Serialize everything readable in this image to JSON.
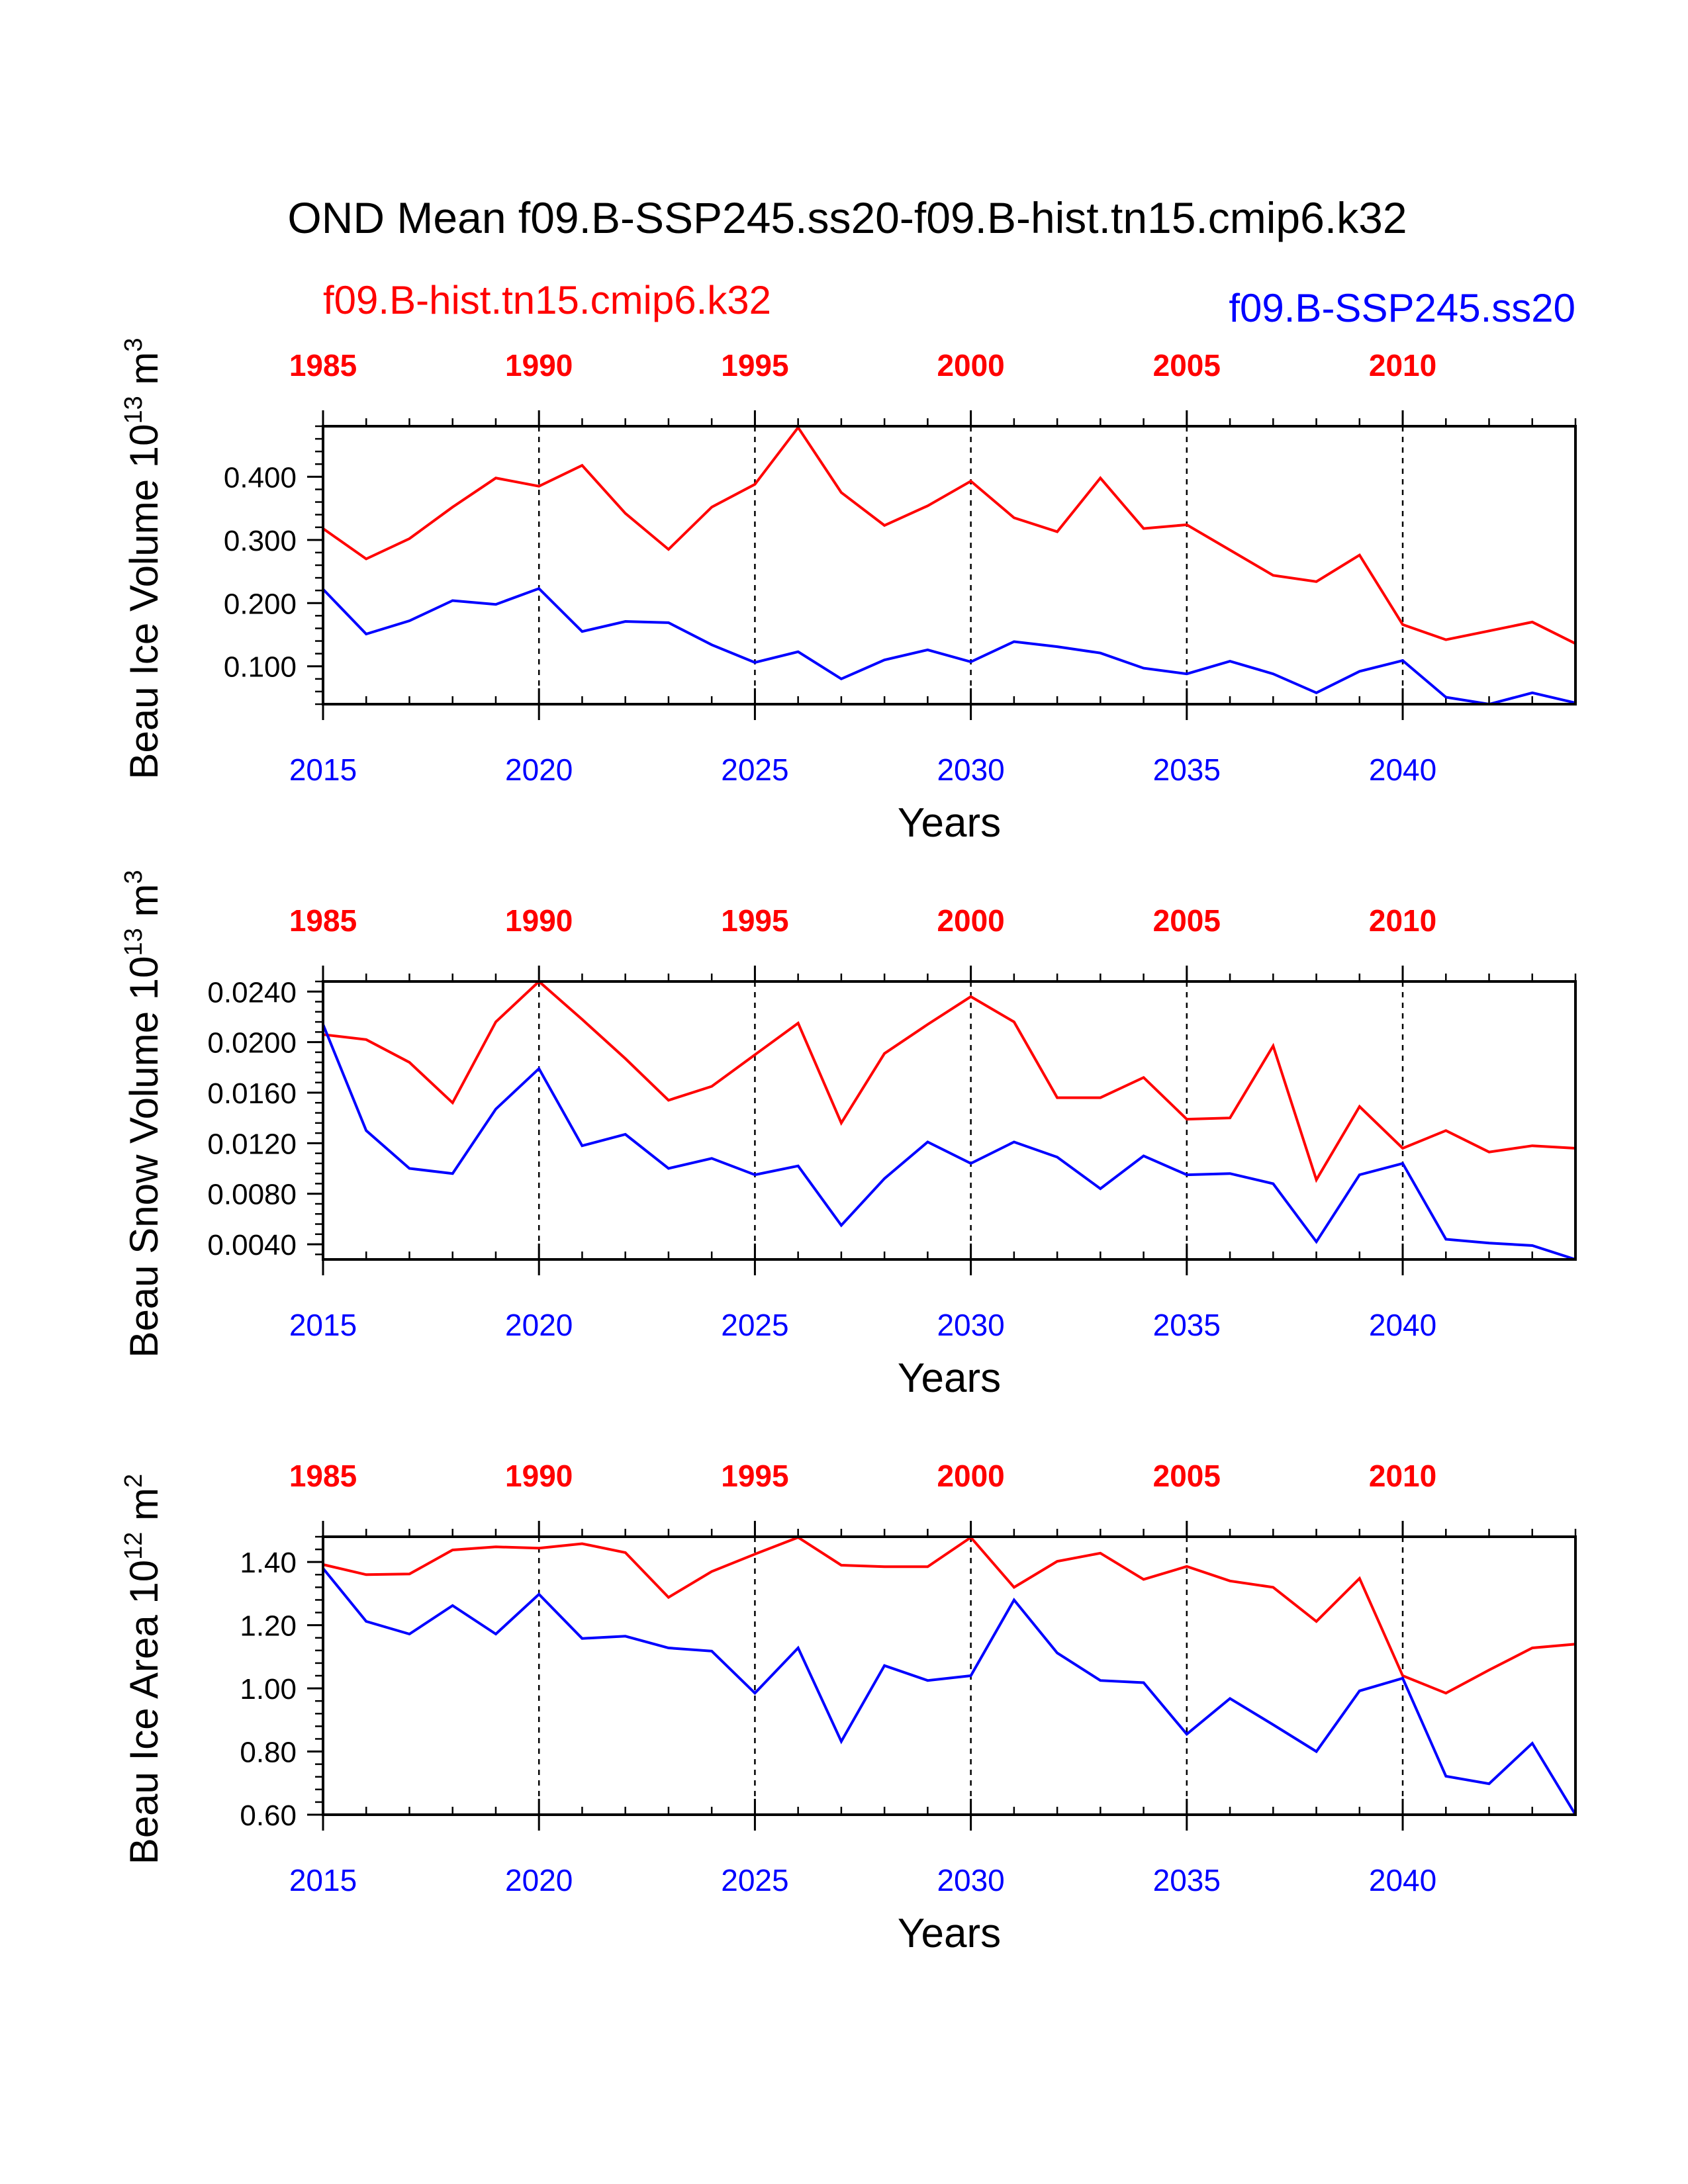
{
  "title": "OND Mean f09.B-SSP245.ss20-f09.B-hist.tn15.cmip6.k32",
  "legend": {
    "left": "f09.B-hist.tn15.cmip6.k32",
    "right": "f09.B-SSP245.ss20"
  },
  "colors": {
    "red": "#ff0000",
    "blue": "#0000ff",
    "axis": "#000000"
  },
  "chart_data": [
    {
      "type": "line",
      "ylabel": "Beau Ice Volume",
      "yunit_base": "10",
      "yunit_exp": "13",
      "yunit_unit": "m",
      "yunit_pow": "3",
      "xlabel": "Years",
      "ylim": [
        0.04,
        0.48
      ],
      "yticks": [
        0.1,
        0.2,
        0.3,
        0.4
      ],
      "ytick_labels": [
        "0.100",
        "0.200",
        "0.300",
        "0.400"
      ],
      "bottom_axis": {
        "xlim": [
          2015,
          2044
        ],
        "ticks": [
          2015,
          2020,
          2025,
          2030,
          2035,
          2040
        ],
        "tick_labels": [
          "2015",
          "2020",
          "2025",
          "2030",
          "2035",
          "2040"
        ]
      },
      "top_axis": {
        "xlim": [
          1985,
          2014
        ],
        "ticks": [
          1985,
          1990,
          1995,
          2000,
          2005,
          2010
        ],
        "tick_labels": [
          "1985",
          "1990",
          "1995",
          "2000",
          "2005",
          "2010"
        ]
      },
      "series": [
        {
          "color": "red",
          "x": [
            1985,
            1986,
            1987,
            1988,
            1989,
            1990,
            1991,
            1992,
            1993,
            1994,
            1995,
            1996,
            1997,
            1998,
            1999,
            2000,
            2001,
            2002,
            2003,
            2004,
            2005,
            2006,
            2007,
            2008,
            2009,
            2010,
            2011,
            2012,
            2013,
            2014
          ],
          "values": [
            0.318,
            0.27,
            0.302,
            0.352,
            0.398,
            0.385,
            0.418,
            0.342,
            0.285,
            0.352,
            0.388,
            0.478,
            0.375,
            0.323,
            0.354,
            0.393,
            0.335,
            0.313,
            0.398,
            0.318,
            0.324,
            0.284,
            0.244,
            0.234,
            0.276,
            0.166,
            0.142,
            0.156,
            0.17,
            0.136
          ]
        },
        {
          "color": "blue",
          "x": [
            2015,
            2016,
            2017,
            2018,
            2019,
            2020,
            2021,
            2022,
            2023,
            2024,
            2025,
            2026,
            2027,
            2028,
            2029,
            2030,
            2031,
            2032,
            2033,
            2034,
            2035,
            2036,
            2037,
            2038,
            2039,
            2040,
            2041,
            2042,
            2043,
            2044
          ],
          "values": [
            0.222,
            0.151,
            0.172,
            0.204,
            0.198,
            0.223,
            0.155,
            0.171,
            0.169,
            0.134,
            0.106,
            0.123,
            0.08,
            0.11,
            0.126,
            0.107,
            0.139,
            0.131,
            0.121,
            0.097,
            0.088,
            0.108,
            0.088,
            0.058,
            0.092,
            0.109,
            0.051,
            0.04,
            0.058,
            0.042
          ]
        }
      ]
    },
    {
      "type": "line",
      "ylabel": "Beau Snow Volume",
      "yunit_base": "10",
      "yunit_exp": "13",
      "yunit_unit": "m",
      "yunit_pow": "3",
      "xlabel": "Years",
      "ylim": [
        0.0028,
        0.0248
      ],
      "yticks": [
        0.004,
        0.008,
        0.012,
        0.016,
        0.02,
        0.024
      ],
      "ytick_labels": [
        "0.0040",
        "0.0080",
        "0.0120",
        "0.0160",
        "0.0200",
        "0.0240"
      ],
      "bottom_axis": {
        "xlim": [
          2015,
          2044
        ],
        "ticks": [
          2015,
          2020,
          2025,
          2030,
          2035,
          2040
        ],
        "tick_labels": [
          "2015",
          "2020",
          "2025",
          "2030",
          "2035",
          "2040"
        ]
      },
      "top_axis": {
        "xlim": [
          1985,
          2014
        ],
        "ticks": [
          1985,
          1990,
          1995,
          2000,
          2005,
          2010
        ],
        "tick_labels": [
          "1985",
          "1990",
          "1995",
          "2000",
          "2005",
          "2010"
        ]
      },
      "series": [
        {
          "color": "red",
          "x": [
            1985,
            1986,
            1987,
            1988,
            1989,
            1990,
            1991,
            1992,
            1993,
            1994,
            1995,
            1996,
            1997,
            1998,
            1999,
            2000,
            2001,
            2002,
            2003,
            2004,
            2005,
            2006,
            2007,
            2008,
            2009,
            2010,
            2011,
            2012,
            2013,
            2014
          ],
          "values": [
            0.0206,
            0.0202,
            0.0184,
            0.0152,
            0.0216,
            0.0248,
            0.0218,
            0.0187,
            0.0154,
            0.0165,
            0.019,
            0.0215,
            0.0136,
            0.0191,
            0.0214,
            0.0236,
            0.0216,
            0.0156,
            0.0156,
            0.0172,
            0.0139,
            0.014,
            0.0197,
            0.0091,
            0.0149,
            0.0116,
            0.013,
            0.0113,
            0.0118,
            0.0116
          ]
        },
        {
          "color": "blue",
          "x": [
            2015,
            2016,
            2017,
            2018,
            2019,
            2020,
            2021,
            2022,
            2023,
            2024,
            2025,
            2026,
            2027,
            2028,
            2029,
            2030,
            2031,
            2032,
            2033,
            2034,
            2035,
            2036,
            2037,
            2038,
            2039,
            2040,
            2041,
            2042,
            2043,
            2044
          ],
          "values": [
            0.0214,
            0.013,
            0.01,
            0.0096,
            0.0147,
            0.0179,
            0.0118,
            0.0127,
            0.01,
            0.0108,
            0.0095,
            0.0102,
            0.0055,
            0.0092,
            0.0121,
            0.0104,
            0.0121,
            0.0109,
            0.0084,
            0.011,
            0.0095,
            0.0096,
            0.0088,
            0.0042,
            0.0095,
            0.0104,
            0.0044,
            0.0041,
            0.0039,
            0.0028
          ]
        }
      ]
    },
    {
      "type": "line",
      "ylabel": "Beau Ice Area",
      "yunit_base": "10",
      "yunit_exp": "12",
      "yunit_unit": "m",
      "yunit_pow": "2",
      "xlabel": "Years",
      "ylim": [
        0.6,
        1.48
      ],
      "yticks": [
        0.6,
        0.8,
        1.0,
        1.2,
        1.4
      ],
      "ytick_labels": [
        "0.60",
        "0.80",
        "1.00",
        "1.20",
        "1.40"
      ],
      "bottom_axis": {
        "xlim": [
          2015,
          2044
        ],
        "ticks": [
          2015,
          2020,
          2025,
          2030,
          2035,
          2040
        ],
        "tick_labels": [
          "2015",
          "2020",
          "2025",
          "2030",
          "2035",
          "2040"
        ]
      },
      "top_axis": {
        "xlim": [
          1985,
          2014
        ],
        "ticks": [
          1985,
          1990,
          1995,
          2000,
          2005,
          2010
        ],
        "tick_labels": [
          "1985",
          "1990",
          "1995",
          "2000",
          "2005",
          "2010"
        ]
      },
      "series": [
        {
          "color": "red",
          "x": [
            1985,
            1986,
            1987,
            1988,
            1989,
            1990,
            1991,
            1992,
            1993,
            1994,
            1995,
            1996,
            1997,
            1998,
            1999,
            2000,
            2001,
            2002,
            2003,
            2004,
            2005,
            2006,
            2007,
            2008,
            2009,
            2010,
            2011,
            2012,
            2013,
            2014
          ],
          "values": [
            1.392,
            1.36,
            1.362,
            1.438,
            1.448,
            1.444,
            1.458,
            1.43,
            1.288,
            1.37,
            1.425,
            1.478,
            1.39,
            1.385,
            1.385,
            1.478,
            1.32,
            1.402,
            1.428,
            1.345,
            1.386,
            1.34,
            1.32,
            1.212,
            1.348,
            1.04,
            0.985,
            1.058,
            1.128,
            1.14
          ]
        },
        {
          "color": "blue",
          "x": [
            2015,
            2016,
            2017,
            2018,
            2019,
            2020,
            2021,
            2022,
            2023,
            2024,
            2025,
            2026,
            2027,
            2028,
            2029,
            2030,
            2031,
            2032,
            2033,
            2034,
            2035,
            2036,
            2037,
            2038,
            2039,
            2040,
            2041,
            2042,
            2043,
            2044
          ],
          "values": [
            1.38,
            1.212,
            1.172,
            1.262,
            1.172,
            1.298,
            1.158,
            1.165,
            1.128,
            1.118,
            0.985,
            1.128,
            0.832,
            1.072,
            1.025,
            1.04,
            1.28,
            1.112,
            1.025,
            1.018,
            0.855,
            0.968,
            0.885,
            0.8,
            0.992,
            1.032,
            0.722,
            0.698,
            0.826,
            0.6
          ]
        }
      ]
    }
  ]
}
